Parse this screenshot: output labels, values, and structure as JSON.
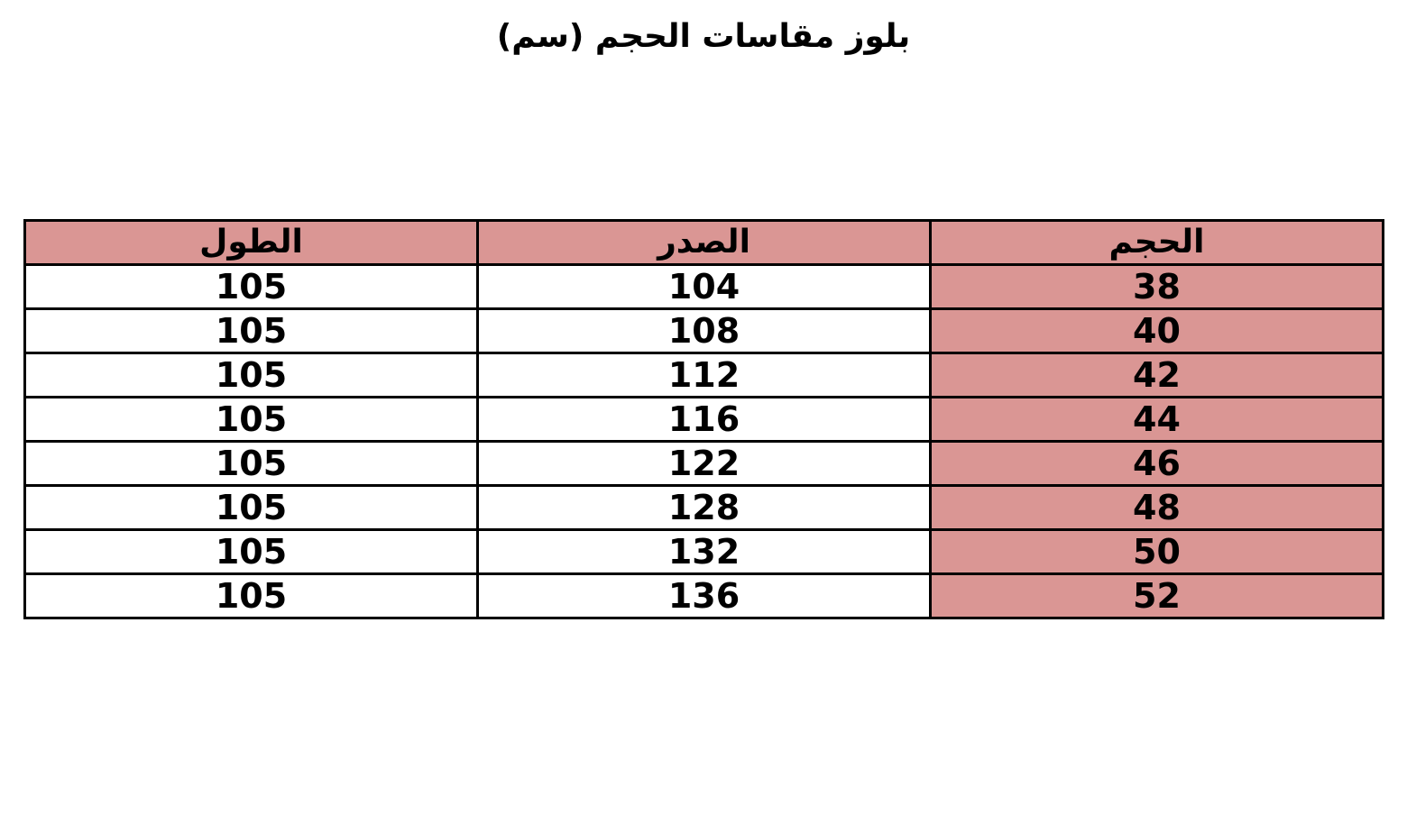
{
  "title": "بلوز مقاسات الحجم (سم)",
  "accent_color": "#da9694",
  "table": {
    "headers": {
      "size": "الحجم",
      "chest": "الصدر",
      "length": "الطول"
    },
    "rows": [
      {
        "size": "38",
        "chest": "104",
        "length": "105"
      },
      {
        "size": "40",
        "chest": "108",
        "length": "105"
      },
      {
        "size": "42",
        "chest": "112",
        "length": "105"
      },
      {
        "size": "44",
        "chest": "116",
        "length": "105"
      },
      {
        "size": "46",
        "chest": "122",
        "length": "105"
      },
      {
        "size": "48",
        "chest": "128",
        "length": "105"
      },
      {
        "size": "50",
        "chest": "132",
        "length": "105"
      },
      {
        "size": "52",
        "chest": "136",
        "length": "105"
      }
    ]
  }
}
